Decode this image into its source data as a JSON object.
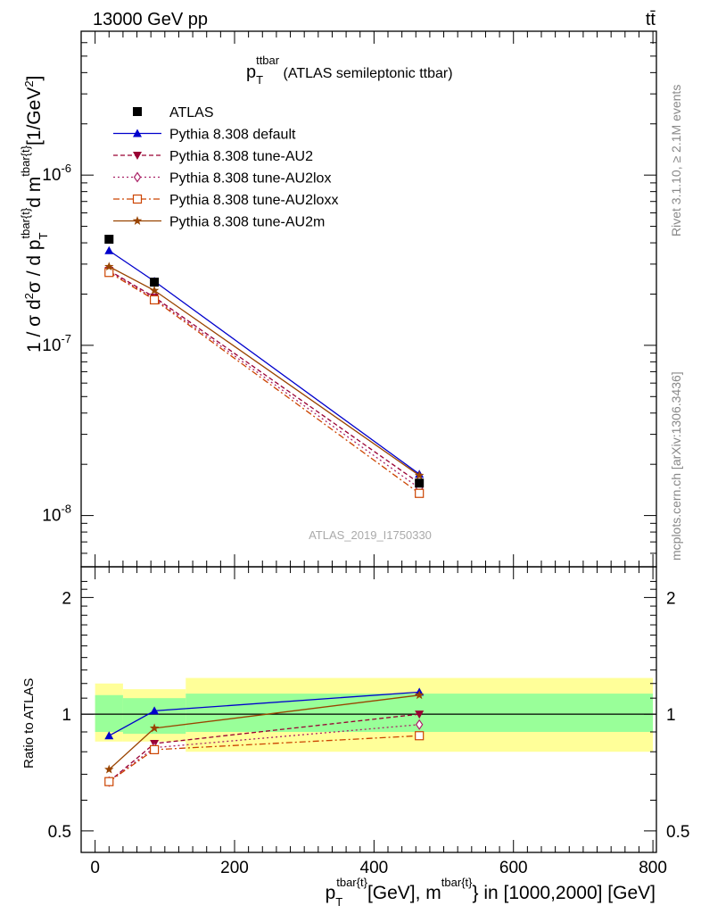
{
  "header": {
    "energy_label": "13000 GeV pp",
    "process_label": "tt̄"
  },
  "sidebar": {
    "rivet_label": "Rivet 3.1.10, ≥ 2.1M events",
    "mcplots_label": "mcplots.cern.ch [arXiv:1306.3436]"
  },
  "top_panel": {
    "title_main": "p",
    "title_sub": "T",
    "title_sup": "ttbar",
    "title_rest": " (ATLAS semileptonic ttbar)",
    "ylabel": "1 / σ d²σ / d p_T^{tbar{t}} d m^{tbar{t}} [1/GeV²]",
    "analysis_id": "ATLAS_2019_I1750330"
  },
  "bottom_panel": {
    "ylabel": "Ratio to ATLAS",
    "xlabel": "p_T^{tbar{t}} [GeV], m^{tbar{t}} in [1000,2000] [GeV]"
  },
  "chart_data": [
    {
      "type": "line",
      "panel": "main",
      "x_scale": "linear",
      "y_scale": "log",
      "xlim": [
        -20,
        805
      ],
      "ylim": [
        5e-09,
        7e-06
      ],
      "y_ticks": [
        {
          "value": 1e-08,
          "label": "10^-8"
        },
        {
          "value": 1e-07,
          "label": "10^-7"
        },
        {
          "value": 1e-06,
          "label": "10^-6"
        }
      ],
      "legend_position": "top-left",
      "data": {
        "name": "ATLAS",
        "x": [
          20,
          85,
          465
        ],
        "y": [
          4.2e-07,
          2.35e-07,
          1.55e-08
        ]
      },
      "series": [
        {
          "name": "Pythia 8.308 default",
          "color": "#0000cc",
          "marker": "triangle-up",
          "dash": "solid",
          "x": [
            20,
            85,
            465
          ],
          "y": [
            3.6e-07,
            2.38e-07,
            1.75e-08
          ]
        },
        {
          "name": "Pythia 8.308 tune-AU2",
          "color": "#990033",
          "marker": "triangle-down",
          "dash": "dashed",
          "x": [
            20,
            85,
            465
          ],
          "y": [
            2.75e-07,
            1.92e-07,
            1.55e-08
          ]
        },
        {
          "name": "Pythia 8.308 tune-AU2lox",
          "color": "#aa2266",
          "marker": "diamond-open",
          "dash": "dotted",
          "x": [
            20,
            85,
            465
          ],
          "y": [
            2.72e-07,
            1.88e-07,
            1.45e-08
          ]
        },
        {
          "name": "Pythia 8.308 tune-AU2loxx",
          "color": "#cc4400",
          "marker": "square-open",
          "dash": "dashdot",
          "x": [
            20,
            85,
            465
          ],
          "y": [
            2.68e-07,
            1.85e-07,
            1.35e-08
          ]
        },
        {
          "name": "Pythia 8.308 tune-AU2m",
          "color": "#994400",
          "marker": "star",
          "dash": "solid",
          "x": [
            20,
            85,
            465
          ],
          "y": [
            2.9e-07,
            2.1e-07,
            1.72e-08
          ]
        }
      ]
    },
    {
      "type": "line",
      "panel": "ratio",
      "x_scale": "linear",
      "y_scale": "log",
      "xlim": [
        -20,
        805
      ],
      "ylim": [
        0.44,
        2.4
      ],
      "x_ticks": [
        0,
        200,
        400,
        600,
        800
      ],
      "y_ticks": [
        0.5,
        1,
        2
      ],
      "bands": [
        {
          "x0": 0,
          "x1": 40,
          "inner": [
            0.9,
            1.12
          ],
          "outer": [
            0.85,
            1.2
          ]
        },
        {
          "x0": 40,
          "x1": 130,
          "inner": [
            0.89,
            1.1
          ],
          "outer": [
            0.85,
            1.16
          ]
        },
        {
          "x0": 130,
          "x1": 800,
          "inner": [
            0.9,
            1.13
          ],
          "outer": [
            0.8,
            1.24
          ]
        }
      ],
      "series": [
        {
          "name": "Pythia 8.308 default",
          "x": [
            20,
            85,
            465
          ],
          "y": [
            0.88,
            1.02,
            1.14
          ]
        },
        {
          "name": "Pythia 8.308 tune-AU2",
          "x": [
            20,
            85,
            465
          ],
          "y": [
            0.67,
            0.84,
            1.0
          ]
        },
        {
          "name": "Pythia 8.308 tune-AU2lox",
          "x": [
            20,
            85,
            465
          ],
          "y": [
            0.67,
            0.82,
            0.94
          ]
        },
        {
          "name": "Pythia 8.308 tune-AU2loxx",
          "x": [
            20,
            85,
            465
          ],
          "y": [
            0.67,
            0.81,
            0.88
          ]
        },
        {
          "name": "Pythia 8.308 tune-AU2m",
          "x": [
            20,
            85,
            465
          ],
          "y": [
            0.72,
            0.92,
            1.12
          ]
        }
      ]
    }
  ]
}
